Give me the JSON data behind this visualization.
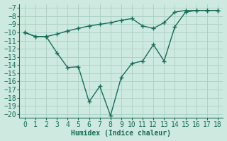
{
  "upper_x": [
    0,
    1,
    2,
    3,
    4,
    5,
    6,
    7,
    8,
    9,
    10,
    11,
    12,
    13,
    14,
    15,
    16,
    17,
    18
  ],
  "upper_y": [
    -10.0,
    -10.5,
    -10.5,
    -10.2,
    -9.8,
    -9.5,
    -9.2,
    -9.0,
    -8.8,
    -8.5,
    -8.3,
    -9.2,
    -9.5,
    -8.8,
    -7.5,
    -7.3,
    -7.3,
    -7.3,
    -7.3
  ],
  "lower_x": [
    0,
    1,
    2,
    3,
    4,
    5,
    6,
    7,
    8,
    9,
    10,
    11,
    12,
    13,
    14,
    15,
    16,
    17,
    18
  ],
  "lower_y": [
    -10.0,
    -10.5,
    -10.5,
    -12.5,
    -14.3,
    -14.2,
    -18.5,
    -16.6,
    -20.2,
    -15.5,
    -13.8,
    -13.5,
    -11.5,
    -13.5,
    -9.3,
    -7.5,
    -7.3,
    -7.3,
    -7.3
  ],
  "line_color": "#1a6b5a",
  "bg_color": "#ceeae0",
  "grid_color": "#aacfc4",
  "xlabel": "Humidex (Indice chaleur)",
  "ylim": [
    -20.5,
    -6.5
  ],
  "xlim": [
    -0.5,
    18.5
  ],
  "yticks": [
    -7,
    -8,
    -9,
    -10,
    -11,
    -12,
    -13,
    -14,
    -15,
    -16,
    -17,
    -18,
    -19,
    -20
  ],
  "xticks": [
    0,
    1,
    2,
    3,
    4,
    5,
    6,
    7,
    8,
    9,
    10,
    11,
    12,
    13,
    14,
    15,
    16,
    17,
    18
  ],
  "marker": "+",
  "marker_size": 4,
  "line_width": 1.0,
  "font_size": 7
}
